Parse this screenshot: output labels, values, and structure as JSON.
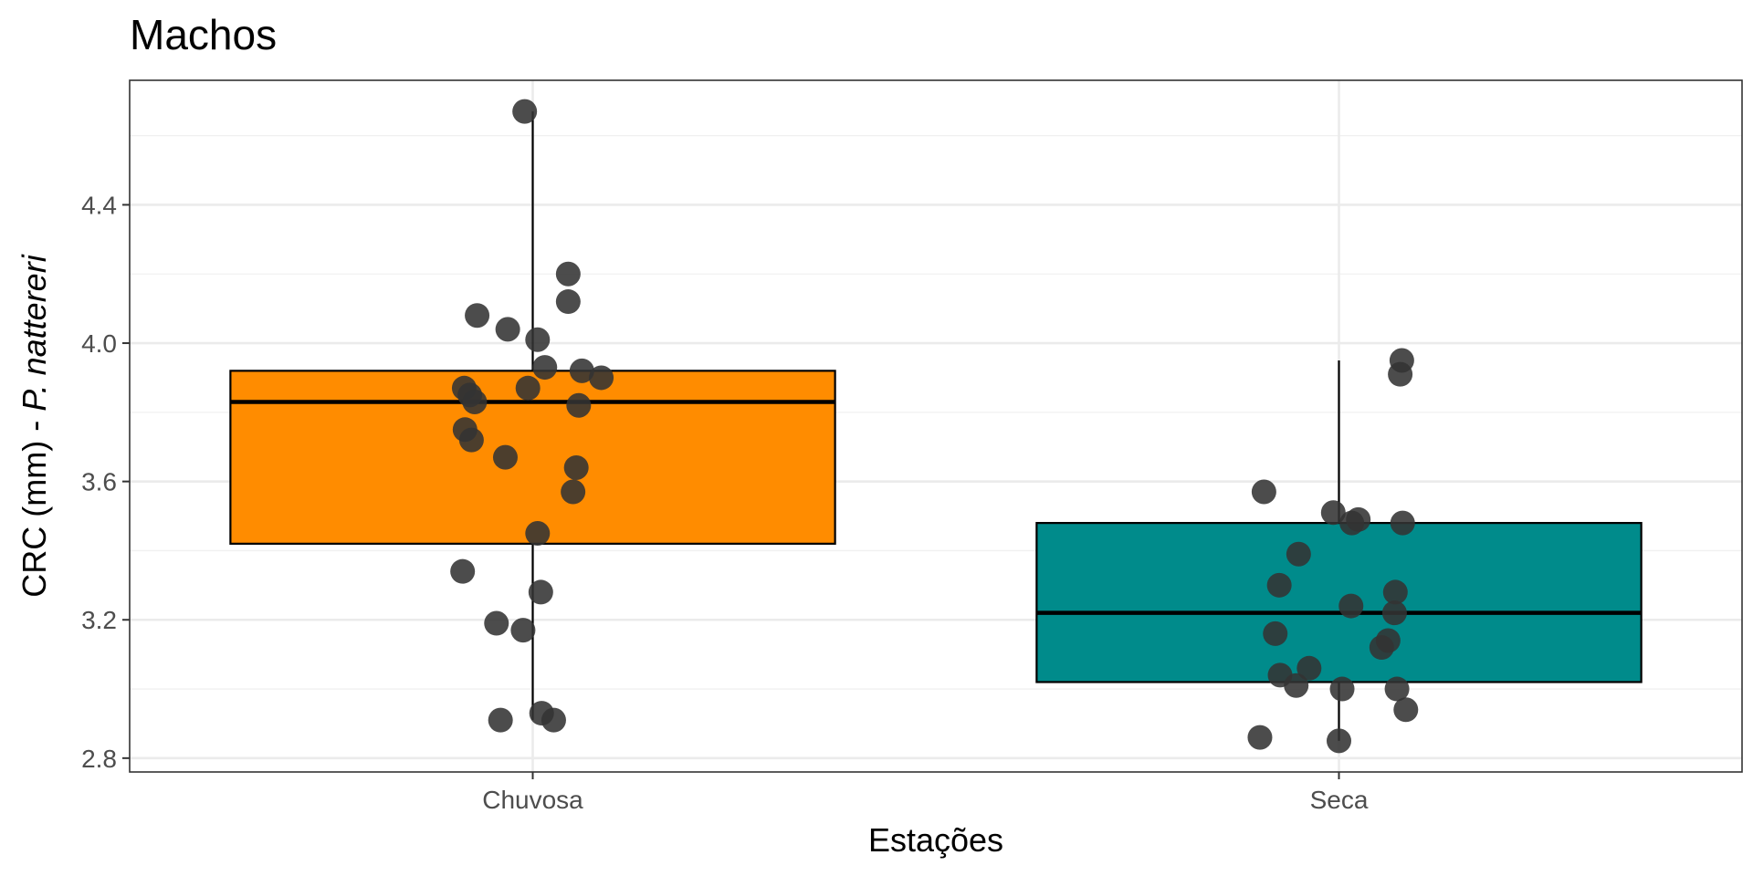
{
  "chart_data": {
    "type": "box",
    "title": "Machos",
    "xlabel": "Estações",
    "ylabel": {
      "prefix": "CRC (mm) - ",
      "species": "P. nattereri"
    },
    "ylim": [
      2.76,
      4.76
    ],
    "y_ticks": [
      2.8,
      3.2,
      3.6,
      4.0,
      4.4
    ],
    "y_tick_labels": [
      "2.8",
      "3.2",
      "3.6",
      "4.0",
      "4.4"
    ],
    "grid": true,
    "categories": [
      "Chuvosa",
      "Seca"
    ],
    "boxes": [
      {
        "category": "Chuvosa",
        "color": "#FF8C00",
        "q1": 3.42,
        "median": 3.83,
        "q3": 3.92,
        "whisker_low": 2.91,
        "whisker_high": 4.67
      },
      {
        "category": "Seca",
        "color": "#008B8B",
        "q1": 3.02,
        "median": 3.22,
        "q3": 3.48,
        "whisker_low": 2.85,
        "whisker_high": 3.95
      }
    ],
    "points": [
      {
        "category": "Chuvosa",
        "jitter": -0.01,
        "y": 4.67
      },
      {
        "category": "Chuvosa",
        "jitter": 0.044,
        "y": 4.2
      },
      {
        "category": "Chuvosa",
        "jitter": 0.044,
        "y": 4.12
      },
      {
        "category": "Chuvosa",
        "jitter": -0.069,
        "y": 4.08
      },
      {
        "category": "Chuvosa",
        "jitter": -0.031,
        "y": 4.04
      },
      {
        "category": "Chuvosa",
        "jitter": 0.006,
        "y": 4.01
      },
      {
        "category": "Chuvosa",
        "jitter": 0.015,
        "y": 3.93
      },
      {
        "category": "Chuvosa",
        "jitter": 0.061,
        "y": 3.92
      },
      {
        "category": "Chuvosa",
        "jitter": 0.085,
        "y": 3.9
      },
      {
        "category": "Chuvosa",
        "jitter": -0.085,
        "y": 3.87
      },
      {
        "category": "Chuvosa",
        "jitter": -0.006,
        "y": 3.87
      },
      {
        "category": "Chuvosa",
        "jitter": -0.078,
        "y": 3.85
      },
      {
        "category": "Chuvosa",
        "jitter": -0.072,
        "y": 3.83
      },
      {
        "category": "Chuvosa",
        "jitter": 0.057,
        "y": 3.82
      },
      {
        "category": "Chuvosa",
        "jitter": -0.084,
        "y": 3.75
      },
      {
        "category": "Chuvosa",
        "jitter": -0.076,
        "y": 3.72
      },
      {
        "category": "Chuvosa",
        "jitter": -0.034,
        "y": 3.67
      },
      {
        "category": "Chuvosa",
        "jitter": 0.054,
        "y": 3.64
      },
      {
        "category": "Chuvosa",
        "jitter": 0.05,
        "y": 3.57
      },
      {
        "category": "Chuvosa",
        "jitter": 0.006,
        "y": 3.45
      },
      {
        "category": "Chuvosa",
        "jitter": -0.087,
        "y": 3.34
      },
      {
        "category": "Chuvosa",
        "jitter": 0.01,
        "y": 3.28
      },
      {
        "category": "Chuvosa",
        "jitter": -0.045,
        "y": 3.19
      },
      {
        "category": "Chuvosa",
        "jitter": -0.012,
        "y": 3.17
      },
      {
        "category": "Chuvosa",
        "jitter": 0.011,
        "y": 2.93
      },
      {
        "category": "Chuvosa",
        "jitter": -0.04,
        "y": 2.91
      },
      {
        "category": "Chuvosa",
        "jitter": 0.026,
        "y": 2.91
      },
      {
        "category": "Seca",
        "jitter": 0.078,
        "y": 3.95
      },
      {
        "category": "Seca",
        "jitter": 0.076,
        "y": 3.91
      },
      {
        "category": "Seca",
        "jitter": -0.093,
        "y": 3.57
      },
      {
        "category": "Seca",
        "jitter": -0.007,
        "y": 3.51
      },
      {
        "category": "Seca",
        "jitter": 0.024,
        "y": 3.49
      },
      {
        "category": "Seca",
        "jitter": 0.016,
        "y": 3.48
      },
      {
        "category": "Seca",
        "jitter": 0.079,
        "y": 3.48
      },
      {
        "category": "Seca",
        "jitter": -0.05,
        "y": 3.39
      },
      {
        "category": "Seca",
        "jitter": -0.074,
        "y": 3.3
      },
      {
        "category": "Seca",
        "jitter": 0.07,
        "y": 3.28
      },
      {
        "category": "Seca",
        "jitter": 0.015,
        "y": 3.24
      },
      {
        "category": "Seca",
        "jitter": 0.069,
        "y": 3.22
      },
      {
        "category": "Seca",
        "jitter": -0.079,
        "y": 3.16
      },
      {
        "category": "Seca",
        "jitter": 0.061,
        "y": 3.14
      },
      {
        "category": "Seca",
        "jitter": 0.053,
        "y": 3.12
      },
      {
        "category": "Seca",
        "jitter": -0.037,
        "y": 3.06
      },
      {
        "category": "Seca",
        "jitter": -0.073,
        "y": 3.04
      },
      {
        "category": "Seca",
        "jitter": -0.053,
        "y": 3.01
      },
      {
        "category": "Seca",
        "jitter": 0.004,
        "y": 3.0
      },
      {
        "category": "Seca",
        "jitter": 0.072,
        "y": 3.0
      },
      {
        "category": "Seca",
        "jitter": 0.083,
        "y": 2.94
      },
      {
        "category": "Seca",
        "jitter": -0.098,
        "y": 2.86
      },
      {
        "category": "Seca",
        "jitter": 0.0,
        "y": 2.85
      }
    ],
    "point_color": "#333333",
    "point_opacity": 0.88
  }
}
